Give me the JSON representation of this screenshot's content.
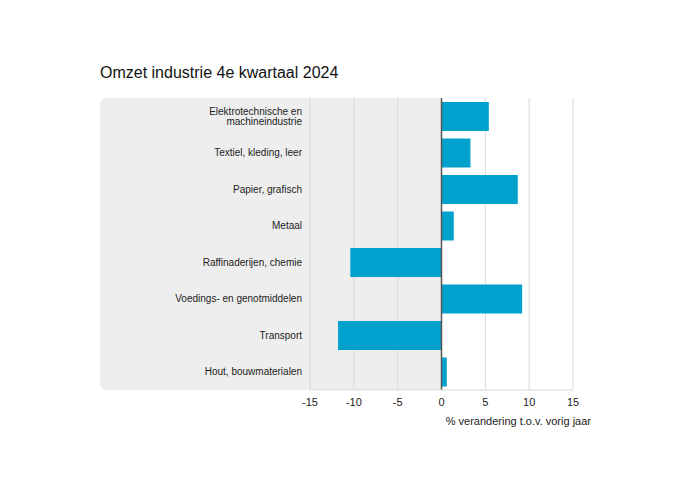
{
  "chart_data": {
    "type": "bar",
    "title": "Omzet industrie 4e kwartaal 2024",
    "orientation": "horizontal",
    "categories": [
      "Elektrotechnische en machineindustrie",
      "Textiel, kleding, leer",
      "Papier, grafisch",
      "Metaal",
      "Raffinaderijen, chemie",
      "Voedings- en genotmiddelen",
      "Transport",
      "Hout, bouwmaterialen"
    ],
    "values": [
      5.4,
      3.3,
      8.7,
      1.4,
      -10.4,
      9.2,
      -11.8,
      0.6
    ],
    "color": "#00a1cd",
    "xlabel": "% verandering t.o.v. vorig jaar",
    "xlim": [
      -15,
      15
    ],
    "xticks": [
      -15,
      -10,
      -5,
      0,
      5,
      10,
      15
    ],
    "grid": true
  }
}
